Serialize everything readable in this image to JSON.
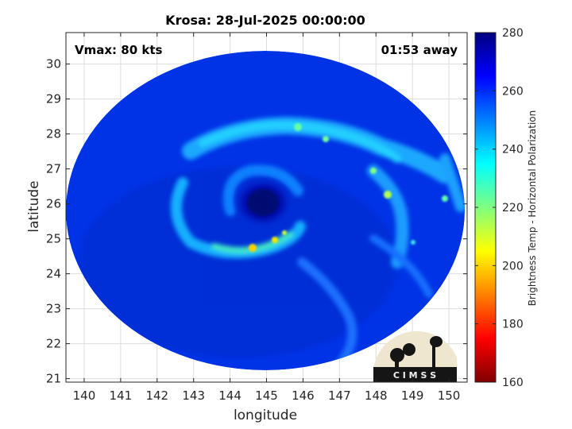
{
  "chart_data": {
    "type": "heatmap",
    "title": "Krosa: 28-Jul-2025 00:00:00",
    "xlabel": "longitude",
    "ylabel": "latitude",
    "xlim": [
      139.5,
      150.5
    ],
    "ylim": [
      20.9,
      30.9
    ],
    "xticks": [
      "140",
      "141",
      "142",
      "143",
      "144",
      "145",
      "146",
      "147",
      "148",
      "149",
      "150"
    ],
    "yticks": [
      "21",
      "22",
      "23",
      "24",
      "25",
      "26",
      "27",
      "28",
      "29",
      "30"
    ],
    "grid": true,
    "annotations": {
      "left": "Vmax: 80 kts",
      "right": "01:53 away"
    },
    "storm_center": {
      "lon": 144.9,
      "lat": 26.2
    },
    "colorbar": {
      "label": "Brightness Temp - Horizontal Polarization",
      "range": [
        160,
        280
      ],
      "ticks": [
        "280",
        "260",
        "240",
        "220",
        "200",
        "180",
        "160"
      ],
      "colormap": "jet"
    },
    "logo_text": "C I M S S"
  }
}
